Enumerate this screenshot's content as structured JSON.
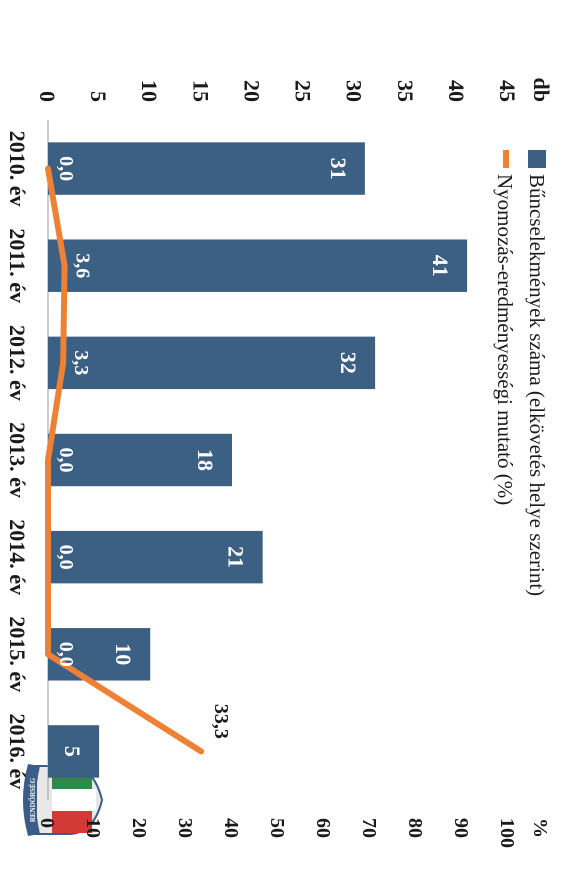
{
  "chart_data": {
    "type": "bar",
    "categories": [
      "2010. év",
      "2011. év",
      "2012. év",
      "2013. év",
      "2014. év",
      "2015. év",
      "2016. év"
    ],
    "series": [
      {
        "name": "Bűncselekmények száma (elkövetés helye szerint)",
        "kind": "bar",
        "axis": "left",
        "values": [
          31,
          41,
          32,
          18,
          21,
          10,
          5
        ],
        "labels": [
          "31",
          "41",
          "32",
          "18",
          "21",
          "10",
          "5"
        ]
      },
      {
        "name": "Nyomozás-eredményességi mutató (%)",
        "kind": "line",
        "axis": "right",
        "values": [
          0.0,
          3.6,
          3.3,
          0.0,
          0.0,
          0.0,
          33.3
        ],
        "labels": [
          "0,0",
          "3,6",
          "3,3",
          "0,0",
          "0,0",
          "0,0",
          "33,3"
        ]
      }
    ],
    "left_axis": {
      "unit": "db",
      "min": 0,
      "max": 45,
      "ticks": [
        "0",
        "5",
        "10",
        "15",
        "20",
        "25",
        "30",
        "35",
        "40",
        "45"
      ]
    },
    "right_axis": {
      "unit": "%",
      "min": 0,
      "max": 100,
      "ticks": [
        "0",
        "10",
        "20",
        "30",
        "40",
        "50",
        "60",
        "70",
        "80",
        "90",
        "100"
      ]
    },
    "legend_position": "top",
    "grid": false,
    "orientation": "rotated-90-clockwise",
    "colors": {
      "bar": "#3c5f84",
      "line": "#ed8236",
      "bar_label": "#ffffff",
      "text": "#1a1a1a"
    }
  },
  "logo": {
    "text": "RENDŐRSÉG"
  }
}
